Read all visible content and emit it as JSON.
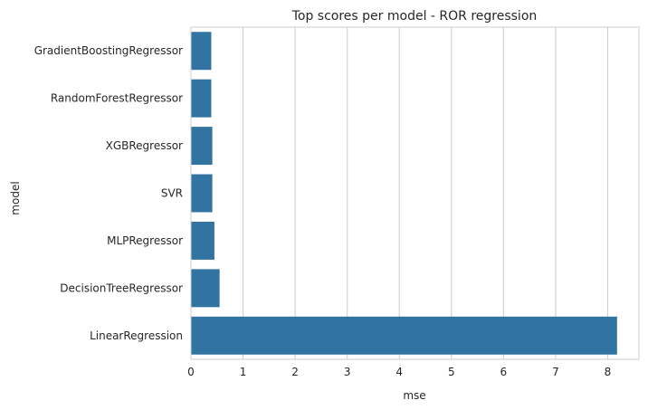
{
  "chart_data": {
    "type": "bar",
    "orientation": "horizontal",
    "title": "Top scores per model - ROR regression",
    "xlabel": "mse",
    "ylabel": "model",
    "categories": [
      "GradientBoostingRegressor",
      "RandomForestRegressor",
      "XGBRegressor",
      "SVR",
      "MLPRegressor",
      "DecisionTreeRegressor",
      "LinearRegression"
    ],
    "values": [
      0.39,
      0.39,
      0.41,
      0.41,
      0.45,
      0.55,
      8.18
    ],
    "xlim": [
      0,
      8.6
    ],
    "xticks": [
      0,
      1,
      2,
      3,
      4,
      5,
      6,
      7,
      8
    ],
    "grid": true,
    "bar_color": "#3274a1",
    "grid_color": "#cccccc"
  }
}
